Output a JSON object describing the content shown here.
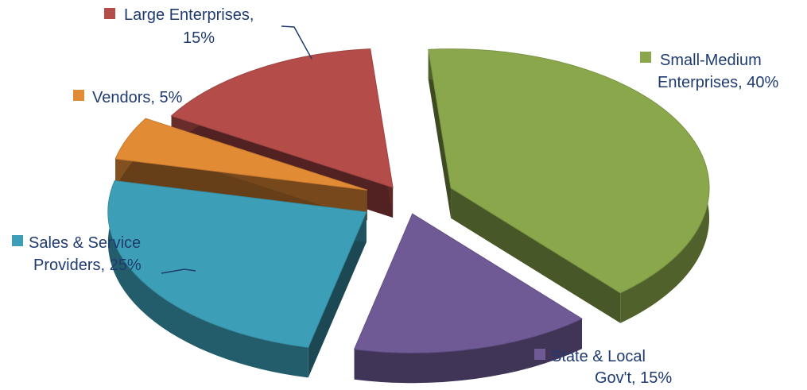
{
  "chart_data": {
    "type": "pie",
    "title": "",
    "legend": "data-labels",
    "slices": [
      {
        "key": "small-medium-enterprises",
        "name": "Small-Medium Enterprises",
        "value": 40,
        "label_lines": [
          "Small-Medium",
          "Enterprises, 40%"
        ],
        "color": "#8aa74c"
      },
      {
        "key": "state-local-govt",
        "name": "State & Local Gov't",
        "value": 15,
        "label_lines": [
          "State & Local",
          "Gov't, 15%"
        ],
        "color": "#6f5a96"
      },
      {
        "key": "sales-service-providers",
        "name": "Sales & Service Providers",
        "value": 25,
        "label_lines": [
          "Sales & Service",
          "Providers, 25%"
        ],
        "color": "#3d9fb7"
      },
      {
        "key": "vendors",
        "name": "Vendors",
        "value": 5,
        "label_lines": [
          "Vendors, 5%"
        ],
        "color": "#e28b35"
      },
      {
        "key": "large-enterprises",
        "name": "Large Enterprises",
        "value": 15,
        "label_lines": [
          "Large Enterprises,",
          "15%"
        ],
        "color": "#b44c4a"
      }
    ]
  }
}
